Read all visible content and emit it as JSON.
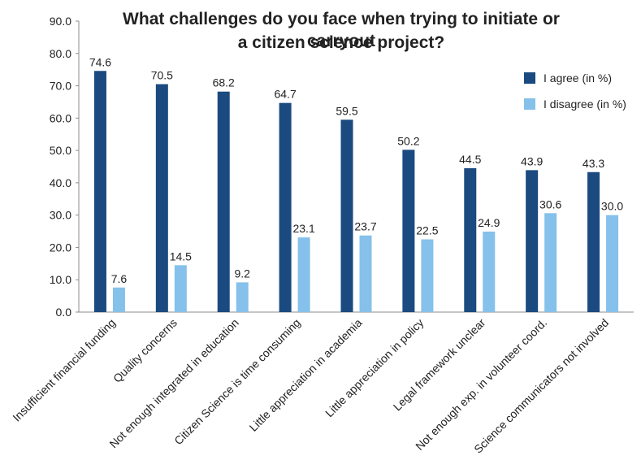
{
  "chart_data": {
    "type": "bar",
    "title_line1": "What challenges do you face when trying to initiate or carryout",
    "title_line2": "a citizen science project?",
    "categories": [
      "Insufficient financial funding",
      "Quality concerns",
      "Not enough integrated in education",
      "Citizen Science is time consuming",
      "Little appreciation in  academia",
      "Little appreciation in policy",
      "Legal framework unclear",
      "Not enough exp. in  volunteer coord.",
      "Science communicators not involved"
    ],
    "series": [
      {
        "name": "I agree (in %)",
        "color": "#1a4a7f",
        "values": [
          74.6,
          70.5,
          68.2,
          64.7,
          59.5,
          50.2,
          44.5,
          43.9,
          43.3
        ]
      },
      {
        "name": "I disagree (in %)",
        "color": "#85c1ea",
        "values": [
          7.6,
          14.5,
          9.2,
          23.1,
          23.7,
          22.5,
          24.9,
          30.6,
          30.0
        ]
      }
    ],
    "ylim": [
      0,
      90
    ],
    "yticks": [
      "0.0",
      "10.0",
      "20.0",
      "30.0",
      "40.0",
      "50.0",
      "60.0",
      "70.0",
      "80.0",
      "90.0"
    ],
    "legend_position": "top-right",
    "grid": false
  }
}
